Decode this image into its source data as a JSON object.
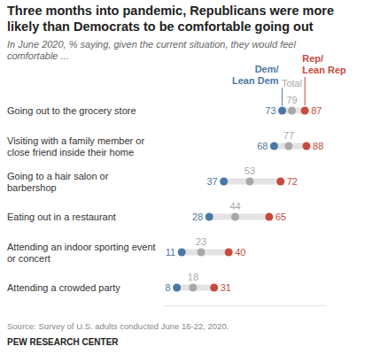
{
  "chart_data": {
    "type": "dot",
    "orientation": "horizontal",
    "title": "Three months into pandemic, Republicans were more likely than Democrats to be comfortable going out",
    "subtitle": "In June 2020, % saying, given the current situation, they would feel comfortable ...",
    "categories": [
      "Going out to the grocery store",
      "Visiting with a family member or close friend inside their home",
      "Going to a hair salon or barbershop",
      "Eating out in a restaurant",
      "Attending an indoor sporting event or concert",
      "Attending a crowded party"
    ],
    "series": [
      {
        "name": "Dem/Lean Dem",
        "color": "#4b77a4",
        "values": [
          73,
          68,
          37,
          28,
          11,
          8
        ]
      },
      {
        "name": "Total",
        "color": "#a8a8a8",
        "values": [
          79,
          77,
          53,
          44,
          23,
          18
        ]
      },
      {
        "name": "Rep/Lean Rep",
        "color": "#c64a3b",
        "values": [
          87,
          88,
          72,
          65,
          40,
          31
        ]
      }
    ],
    "xlim": [
      0,
      100
    ],
    "data_labels": true,
    "tick_labels": "y",
    "source": "Source: Survey of U.S. adults conducted June 16-22, 2020.",
    "credit": "PEW RESEARCH CENTER"
  }
}
